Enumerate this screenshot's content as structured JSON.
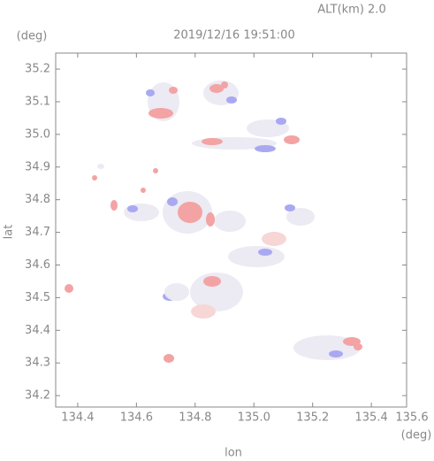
{
  "chart_data": {
    "type": "radar-map",
    "title": "2019/12/16 19:51:00",
    "subtitle": "ALT(km) 2.0",
    "x_label": "lon",
    "y_label": "lat",
    "x_unit": "(deg)",
    "y_unit": "(deg)",
    "xlim": [
      134.325,
      135.52
    ],
    "ylim": [
      34.165,
      35.249
    ],
    "xticks": [
      134.4,
      134.6,
      134.8,
      {
        "value": 135,
        "label": "135.0"
      },
      135.2,
      135.4,
      135.6
    ],
    "yticks": [
      34.2,
      34.3,
      34.4,
      34.5,
      34.6,
      34.7,
      34.8,
      34.9,
      {
        "value": 35,
        "label": "35.0"
      },
      35.1,
      35.2
    ],
    "color": "#888888"
  }
}
